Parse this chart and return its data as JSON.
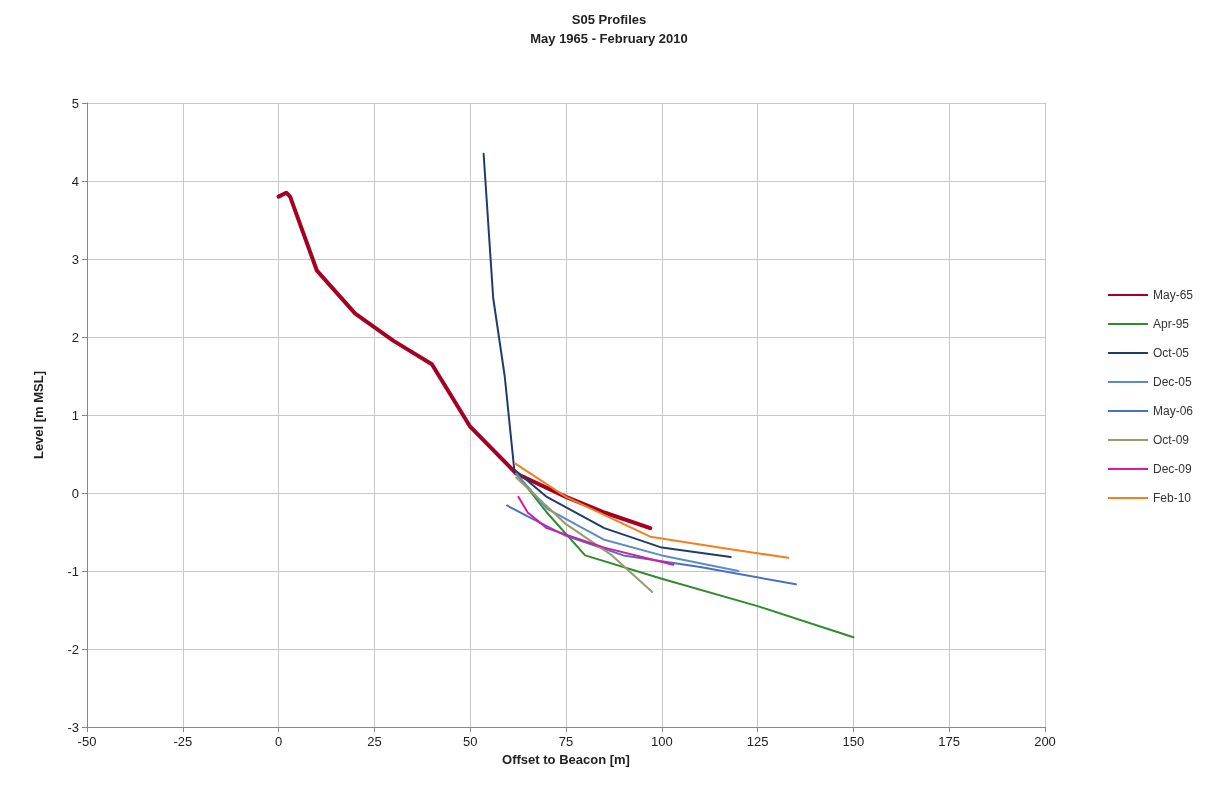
{
  "chart_data": {
    "type": "line",
    "title": "S05 Profiles",
    "subtitle": "May 1965 - February 2010",
    "xlabel": "Offset to Beacon [m]",
    "ylabel": "Level [m MSL]",
    "xlim": [
      -50,
      200
    ],
    "xticks": [
      -50,
      -25,
      0,
      25,
      50,
      75,
      100,
      125,
      150,
      175,
      200
    ],
    "ylim": [
      -3,
      5
    ],
    "yticks": [
      -3,
      -2,
      -1,
      0,
      1,
      2,
      3,
      4,
      5
    ],
    "grid": true,
    "legend": "right",
    "marker": "none",
    "line_style": "solid",
    "series": [
      {
        "name": "May-65",
        "color": "#a50021",
        "x": [
          0,
          2,
          3,
          10,
          20,
          30,
          40,
          50,
          62,
          75,
          85,
          97
        ],
        "values": [
          3.8,
          3.85,
          3.8,
          2.85,
          2.3,
          1.95,
          1.65,
          0.85,
          0.25,
          -0.05,
          -0.25,
          -0.45
        ]
      },
      {
        "name": "Apr-95",
        "color": "#2e8b2e",
        "x": [
          62,
          70,
          80,
          100,
          125,
          150
        ],
        "values": [
          0.25,
          -0.25,
          -0.8,
          -1.1,
          -1.45,
          -1.85
        ]
      },
      {
        "name": "Oct-05",
        "color": "#1f3d6b",
        "x": [
          53.5,
          56,
          59,
          61.5,
          70,
          85,
          100,
          118
        ],
        "values": [
          4.35,
          2.5,
          1.5,
          0.3,
          -0.05,
          -0.45,
          -0.7,
          -0.82
        ]
      },
      {
        "name": "Dec-05",
        "color": "#5b8cc8",
        "x": [
          62,
          70,
          85,
          100,
          120
        ],
        "values": [
          0.25,
          -0.2,
          -0.6,
          -0.8,
          -1.0
        ]
      },
      {
        "name": "May-06",
        "color": "#4a6fc8",
        "x": [
          59.6,
          65,
          75,
          90,
          110,
          135
        ],
        "values": [
          -0.16,
          -0.3,
          -0.55,
          -0.8,
          -0.95,
          -1.17
        ]
      },
      {
        "name": "Oct-09",
        "color": "#9a9a70",
        "x": [
          62,
          75,
          87,
          97.5
        ],
        "values": [
          0.2,
          -0.4,
          -0.8,
          -1.27
        ]
      },
      {
        "name": "Dec-09",
        "color": "#d81b9a",
        "x": [
          62.6,
          65,
          70,
          85,
          103
        ],
        "values": [
          -0.05,
          -0.25,
          -0.45,
          -0.7,
          -0.92
        ]
      },
      {
        "name": "Feb-10",
        "color": "#f08020",
        "x": [
          61.7,
          75,
          97,
          115,
          133
        ],
        "values": [
          0.38,
          -0.05,
          -0.56,
          -0.7,
          -0.83
        ]
      }
    ]
  }
}
